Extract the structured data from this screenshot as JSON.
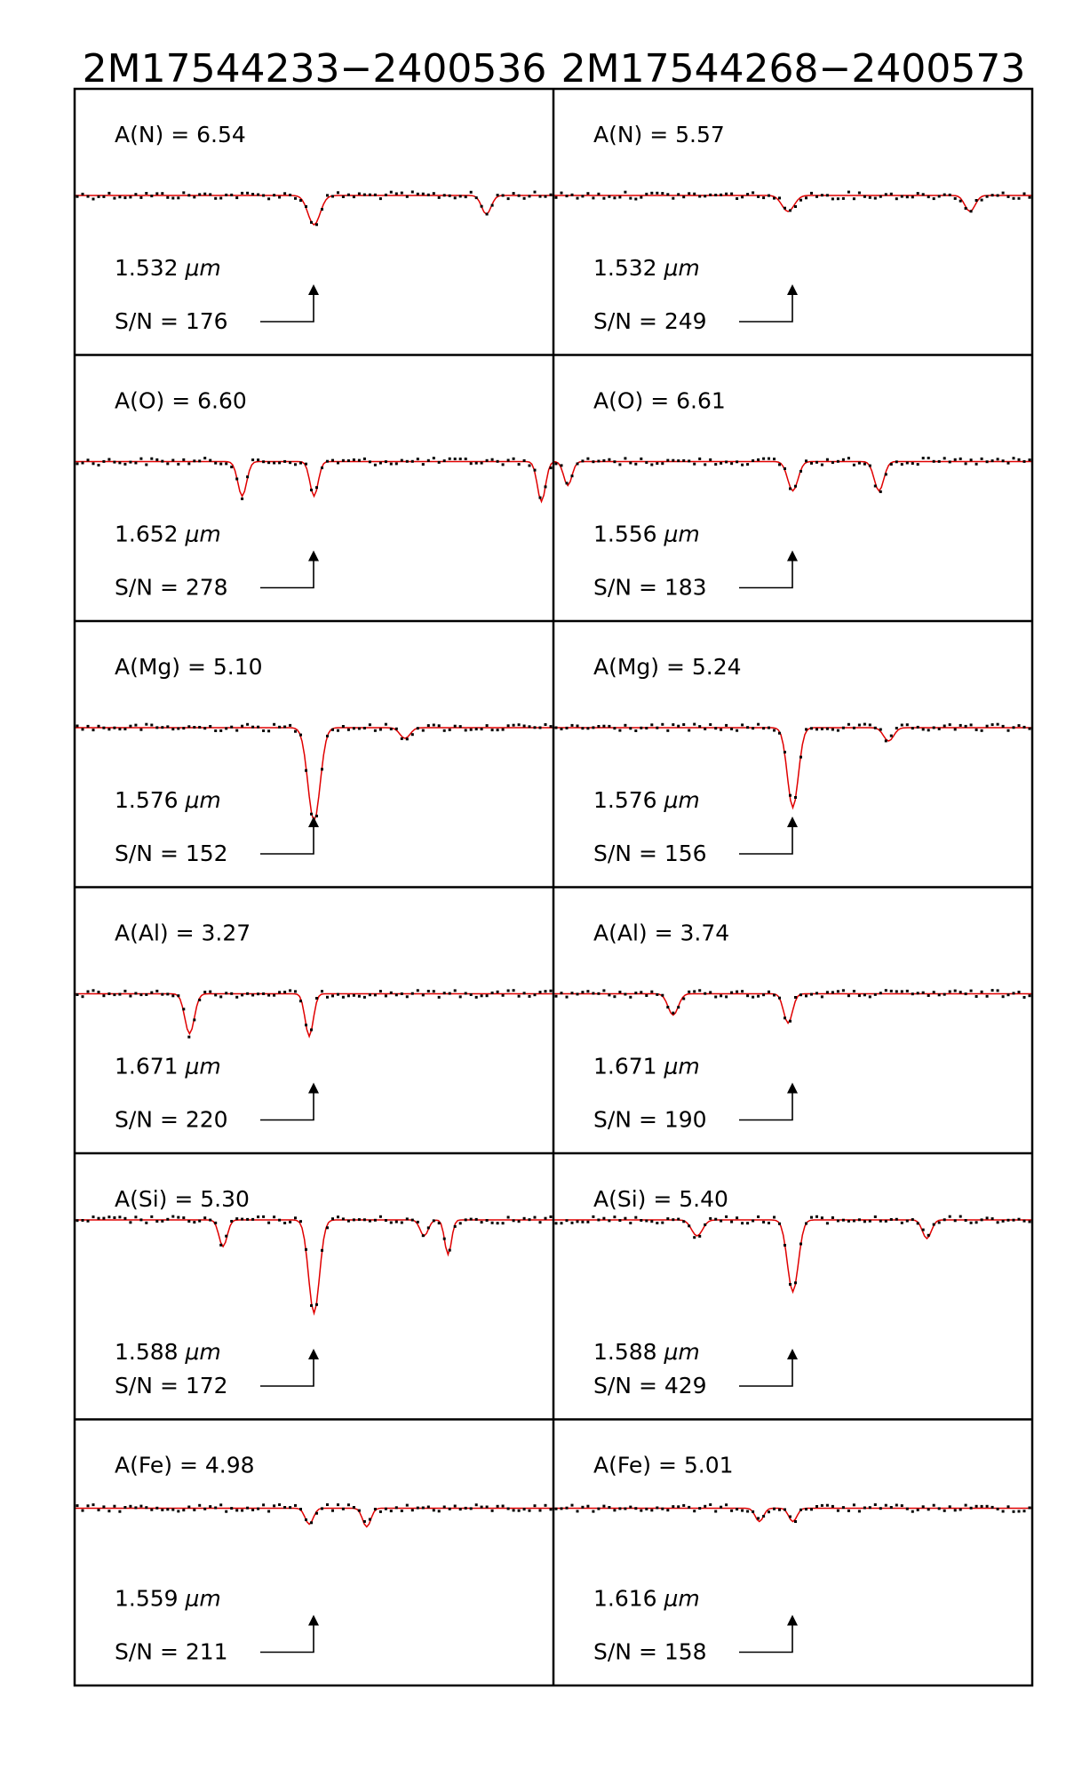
{
  "columns": [
    {
      "title": "2M17544233−2400536"
    },
    {
      "title": "2M17544268−2400573"
    }
  ],
  "panels": [
    [
      {
        "abundance": "A(N)  =  6.54",
        "wavelength": "1.532",
        "unit": "μm",
        "sn": "S/N  =  176",
        "lines": [
          {
            "x": 0.5,
            "depth": 0.11,
            "width": 0.018
          },
          {
            "x": 0.86,
            "depth": 0.07,
            "width": 0.014
          }
        ]
      },
      {
        "abundance": "A(O)  =  6.60",
        "wavelength": "1.652",
        "unit": "μm",
        "sn": "S/N  =  278",
        "lines": [
          {
            "x": 0.35,
            "depth": 0.13,
            "width": 0.013
          },
          {
            "x": 0.5,
            "depth": 0.13,
            "width": 0.012
          },
          {
            "x": 0.975,
            "depth": 0.15,
            "width": 0.012
          }
        ]
      },
      {
        "abundance": "A(Mg)  =  5.10",
        "wavelength": "1.576",
        "unit": "μm",
        "sn": "S/N  =  152",
        "lines": [
          {
            "x": 0.5,
            "depth": 0.35,
            "width": 0.018
          },
          {
            "x": 0.69,
            "depth": 0.04,
            "width": 0.015
          }
        ]
      },
      {
        "abundance": "A(Al)  =  3.27",
        "wavelength": "1.671",
        "unit": "μm",
        "sn": "S/N  =  220",
        "lines": [
          {
            "x": 0.24,
            "depth": 0.15,
            "width": 0.014
          },
          {
            "x": 0.49,
            "depth": 0.16,
            "width": 0.012
          }
        ]
      },
      {
        "abundance": "A(Si)  =  5.30",
        "wavelength": "1.588",
        "unit": "μm",
        "sn": "S/N  =  172",
        "lines": [
          {
            "x": 0.5,
            "depth": 0.35,
            "width": 0.016
          },
          {
            "x": 0.31,
            "depth": 0.1,
            "width": 0.012
          },
          {
            "x": 0.78,
            "depth": 0.13,
            "width": 0.01
          },
          {
            "x": 0.73,
            "depth": 0.06,
            "width": 0.012
          }
        ]
      },
      {
        "abundance": "A(Fe)  =  4.98",
        "wavelength": "1.559",
        "unit": "μm",
        "sn": "S/N  =  211",
        "lines": [
          {
            "x": 0.49,
            "depth": 0.06,
            "width": 0.012
          },
          {
            "x": 0.61,
            "depth": 0.07,
            "width": 0.012
          }
        ]
      }
    ],
    [
      {
        "abundance": "A(N)  =  5.57",
        "wavelength": "1.532",
        "unit": "μm",
        "sn": "S/N  =  249",
        "lines": [
          {
            "x": 0.49,
            "depth": 0.06,
            "width": 0.018
          },
          {
            "x": 0.87,
            "depth": 0.06,
            "width": 0.015
          }
        ]
      },
      {
        "abundance": "A(O)  =  6.61",
        "wavelength": "1.556",
        "unit": "μm",
        "sn": "S/N  =  183",
        "lines": [
          {
            "x": 0.5,
            "depth": 0.11,
            "width": 0.015
          },
          {
            "x": 0.68,
            "depth": 0.11,
            "width": 0.014
          },
          {
            "x": 0.03,
            "depth": 0.09,
            "width": 0.012
          }
        ]
      },
      {
        "abundance": "A(Mg)  =  5.24",
        "wavelength": "1.576",
        "unit": "μm",
        "sn": "S/N  =  156",
        "lines": [
          {
            "x": 0.5,
            "depth": 0.3,
            "width": 0.016
          },
          {
            "x": 0.7,
            "depth": 0.05,
            "width": 0.015
          }
        ]
      },
      {
        "abundance": "A(Al)  =  3.74",
        "wavelength": "1.671",
        "unit": "μm",
        "sn": "S/N  =  190",
        "lines": [
          {
            "x": 0.25,
            "depth": 0.08,
            "width": 0.015
          },
          {
            "x": 0.49,
            "depth": 0.11,
            "width": 0.013
          }
        ]
      },
      {
        "abundance": "A(Si)  =  5.40",
        "wavelength": "1.588",
        "unit": "μm",
        "sn": "S/N  =  429",
        "lines": [
          {
            "x": 0.5,
            "depth": 0.27,
            "width": 0.016
          },
          {
            "x": 0.3,
            "depth": 0.06,
            "width": 0.016
          },
          {
            "x": 0.78,
            "depth": 0.07,
            "width": 0.013
          }
        ]
      },
      {
        "abundance": "A(Fe)  =  5.01",
        "wavelength": "1.616",
        "unit": "μm",
        "sn": "S/N  =  158",
        "lines": [
          {
            "x": 0.43,
            "depth": 0.05,
            "width": 0.012
          },
          {
            "x": 0.5,
            "depth": 0.05,
            "width": 0.012
          }
        ]
      }
    ]
  ],
  "colors": {
    "model": "#e00000",
    "observed": "#000000",
    "frame": "#000000"
  },
  "chart_data": {
    "type": "scatter",
    "description_series": [
      {
        "name": "observed spectrum",
        "style": "black dots"
      },
      {
        "name": "synthetic fit",
        "style": "red line"
      }
    ],
    "grid": false
  }
}
